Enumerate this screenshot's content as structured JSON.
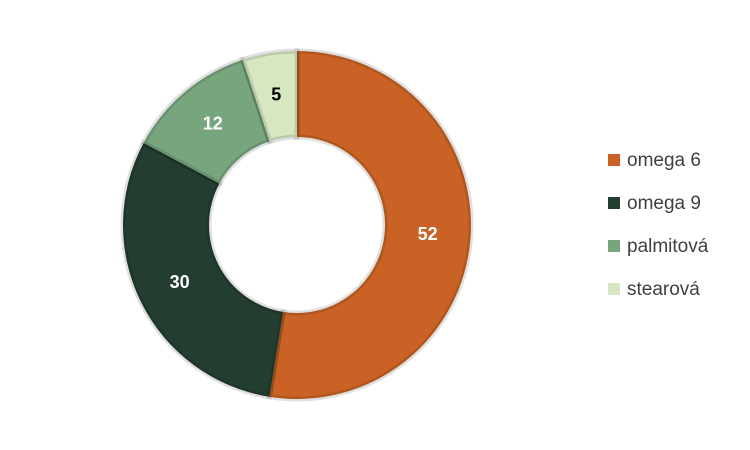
{
  "chart_data": {
    "type": "donut",
    "categories": [
      "omega 6",
      "omega 9",
      "palmitová",
      "stearová"
    ],
    "values": [
      52,
      30,
      12,
      5
    ],
    "colors": [
      "#c96224",
      "#233d30",
      "#77a57e",
      "#d7e7c2"
    ],
    "label_colors": [
      "#ffffff",
      "#ffffff",
      "#ffffff",
      "#000000"
    ],
    "legend": "right"
  }
}
